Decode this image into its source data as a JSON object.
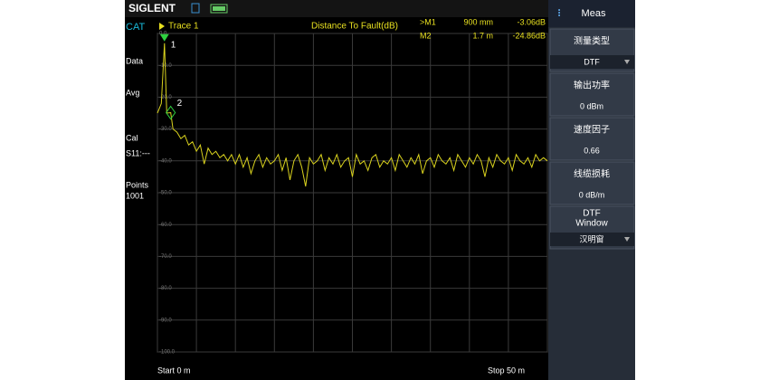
{
  "status_bar": {
    "brand": "SIGLENT"
  },
  "left_panel": {
    "mode": "CAT",
    "items": [
      "Data",
      "Avg",
      "Cal",
      "S11:---",
      "Points",
      "1001"
    ]
  },
  "chart_data": {
    "type": "line",
    "title": "Distance To Fault(dB)",
    "x": [
      0,
      0.5,
      0.9,
      1.2,
      1.7,
      2,
      2.5,
      3,
      3.5,
      4,
      4.5,
      5,
      5.5,
      6,
      6.5,
      7,
      7.5,
      8,
      8.5,
      9,
      9.5,
      10,
      10.5,
      11,
      11.5,
      12,
      12.5,
      13,
      13.5,
      14,
      14.5,
      15,
      15.5,
      16,
      16.5,
      17,
      17.5,
      18,
      18.5,
      19,
      19.5,
      20,
      20.5,
      21,
      21.5,
      22,
      22.5,
      23,
      23.5,
      24,
      24.5,
      25,
      25.5,
      26,
      26.5,
      27,
      27.5,
      28,
      28.5,
      29,
      29.5,
      30,
      30.5,
      31,
      31.5,
      32,
      32.5,
      33,
      33.5,
      34,
      34.5,
      35,
      35.5,
      36,
      36.5,
      37,
      37.5,
      38,
      38.5,
      39,
      39.5,
      40,
      40.5,
      41,
      41.5,
      42,
      42.5,
      43,
      43.5,
      44,
      44.5,
      45,
      45.5,
      46,
      46.5,
      47,
      47.5,
      48,
      48.5,
      49,
      49.5,
      50
    ],
    "series": [
      {
        "name": "Trace 1",
        "color": "#d9d21e",
        "values": [
          -25,
          -22,
          -3.06,
          -25,
          -24.86,
          -30,
          -31,
          -33,
          -32,
          -35,
          -34,
          -37,
          -35,
          -41,
          -36,
          -38,
          -37,
          -39,
          -38,
          -40,
          -38,
          -41,
          -38,
          -42,
          -39,
          -44,
          -40,
          -38,
          -42,
          -39,
          -41,
          -40,
          -38,
          -43,
          -39,
          -46,
          -40,
          -38,
          -42,
          -48,
          -39,
          -41,
          -40,
          -38,
          -43,
          -39,
          -41,
          -38,
          -42,
          -40,
          -39,
          -45,
          -38,
          -41,
          -40,
          -43,
          -39,
          -38,
          -42,
          -40,
          -41,
          -39,
          -43,
          -38,
          -40,
          -42,
          -39,
          -41,
          -38,
          -44,
          -40,
          -39,
          -42,
          -38,
          -40,
          -41,
          -39,
          -43,
          -38,
          -40,
          -42,
          -39,
          -41,
          -38,
          -40,
          -45,
          -39,
          -42,
          -38,
          -40,
          -41,
          -39,
          -43,
          -38,
          -40,
          -41,
          -39,
          -42,
          -38,
          -40,
          -39,
          -40
        ]
      }
    ],
    "xlim": [
      0,
      50
    ],
    "xticks": [
      0,
      5,
      10,
      15,
      20,
      25,
      30,
      35,
      40,
      45,
      50
    ],
    "ylim": [
      -100,
      0
    ],
    "yticks": [
      {
        "value": 0,
        "label": "0.0"
      },
      {
        "value": -10,
        "label": "-10.0"
      },
      {
        "value": -20,
        "label": "-20.0"
      },
      {
        "value": -30,
        "label": "-30.0"
      },
      {
        "value": -40,
        "label": "-40.0"
      },
      {
        "value": -50,
        "label": "-50.0"
      },
      {
        "value": -60,
        "label": "-60.0"
      },
      {
        "value": -70,
        "label": "-70.0"
      },
      {
        "value": -80,
        "label": "-80.0"
      },
      {
        "value": -90,
        "label": "-90.0"
      },
      {
        "value": -100,
        "label": "-100.0"
      }
    ],
    "grid": true,
    "markers": [
      {
        "name": ">M1",
        "tag": "1",
        "x": 0.9,
        "x_label": "900 mm",
        "value": -3.06,
        "value_label": "-3.06dB"
      },
      {
        "name": "M2",
        "tag": "2",
        "x": 1.7,
        "x_label": "1.7 m",
        "value": -24.86,
        "value_label": "-24.86dB"
      }
    ]
  },
  "footer": {
    "start": "Start  0 m",
    "stop": "Stop  50 m"
  },
  "menu": {
    "title": "Meas",
    "items": [
      {
        "title": "测量类型",
        "value": "DTF"
      },
      {
        "title": "输出功率",
        "value": "0 dBm"
      },
      {
        "title": "速度因子",
        "value": "0.66"
      },
      {
        "title": "线缆损耗",
        "value": "0 dB/m"
      },
      {
        "title": "DTF",
        "subtitle": "Window",
        "value": "汉明窗"
      }
    ]
  }
}
